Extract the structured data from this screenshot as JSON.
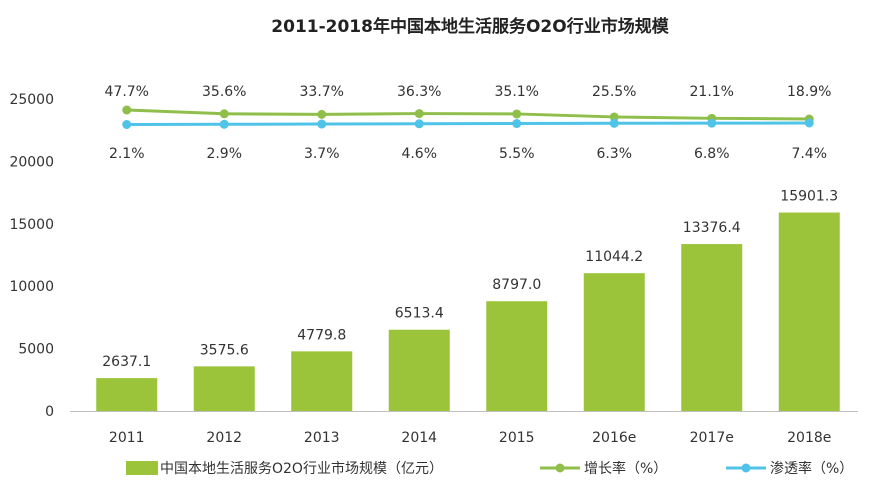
{
  "chart_data": {
    "type": "bar",
    "title": "2011-2018年中国本地生活服务O2O行业市场规模",
    "categories": [
      "2011",
      "2012",
      "2013",
      "2014",
      "2015",
      "2016e",
      "2017e",
      "2018e"
    ],
    "ylim": [
      0,
      25000
    ],
    "yticks": [
      0,
      5000,
      10000,
      15000,
      20000,
      25000
    ],
    "grid": false,
    "legend_position": "bottom",
    "series": [
      {
        "name": "中国本地生活服务O2O行业市场规模（亿元）",
        "kind": "bar",
        "color": "#9bc43a",
        "values": [
          2637.1,
          3575.6,
          4779.8,
          6513.4,
          8797.0,
          11044.2,
          13376.4,
          15901.3
        ],
        "labels": [
          "2637.1",
          "3575.6",
          "4779.8",
          "6513.4",
          "8797.0",
          "11044.2",
          "13376.4",
          "15901.3"
        ]
      },
      {
        "name": "增长率（%）",
        "kind": "line",
        "color": "#8fbf4a",
        "values": [
          47.7,
          35.6,
          33.7,
          36.3,
          35.1,
          25.5,
          21.1,
          18.9
        ],
        "labels": [
          "47.7%",
          "35.6%",
          "33.7%",
          "36.3%",
          "35.1%",
          "25.5%",
          "21.1%",
          "18.9%"
        ]
      },
      {
        "name": "渗透率（%）",
        "kind": "line",
        "color": "#4fc3e8",
        "values": [
          2.1,
          2.9,
          3.7,
          4.6,
          5.5,
          6.3,
          6.8,
          7.4
        ],
        "labels": [
          "2.1%",
          "2.9%",
          "3.7%",
          "4.6%",
          "5.5%",
          "6.3%",
          "6.8%",
          "7.4%"
        ]
      }
    ]
  }
}
